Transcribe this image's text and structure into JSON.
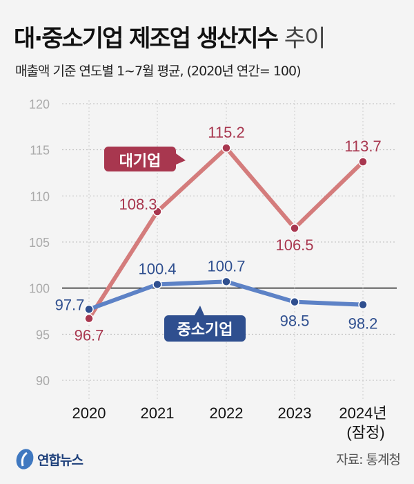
{
  "title": {
    "bold": "대·중소기업 제조업 생산지수",
    "light": "추이"
  },
  "subtitle": "매출액 기준 연도별 1~7월 평균, (2020년 연간= 100)",
  "chart_data": {
    "type": "line",
    "categories": [
      "2020",
      "2021",
      "2022",
      "2023",
      "2024년"
    ],
    "category_note": "(잠정)",
    "ylim": [
      90,
      120
    ],
    "yticks": [
      90,
      95,
      100,
      105,
      110,
      115,
      120
    ],
    "reference_line": 100,
    "grid": "horizontal",
    "series": [
      {
        "name": "대기업",
        "values": [
          96.7,
          108.3,
          115.2,
          106.5,
          113.7
        ],
        "line_color": "#d47c7c",
        "marker_color": "#a8374f",
        "label_color": "#a8374f"
      },
      {
        "name": "중소기업",
        "values": [
          97.7,
          100.4,
          100.7,
          98.5,
          98.2
        ],
        "line_color": "#5d82c6",
        "marker_color": "#2f4f8f",
        "label_color": "#2f4f8f"
      }
    ]
  },
  "footer": {
    "logo": "연합뉴스",
    "source": "자료: 통계청"
  }
}
